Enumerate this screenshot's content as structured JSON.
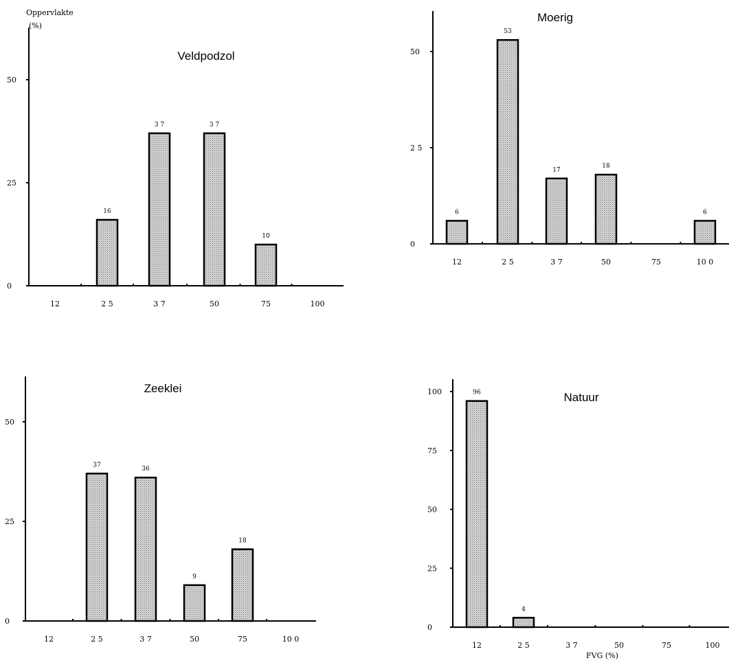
{
  "figure": {
    "y_unit_label": "Oppervlakte\n(%)",
    "x_unit_label": "FVG (%)"
  },
  "chart_data": [
    {
      "type": "bar",
      "title": "Veldpodzol",
      "categories": [
        "12",
        "25",
        "37",
        "50",
        "75",
        "100"
      ],
      "category_labels": [
        "12",
        "2 5",
        "3 7",
        "50",
        "75",
        "100"
      ],
      "values": [
        0,
        16,
        37,
        37,
        10,
        0
      ],
      "data_labels": [
        "",
        "16",
        "3 7",
        "3 7",
        "10",
        ""
      ],
      "yticks": [
        "0",
        "25",
        "50"
      ],
      "ylim": [
        0,
        60
      ],
      "grid": false
    },
    {
      "type": "bar",
      "title": "Moerig",
      "categories": [
        "12",
        "25",
        "37",
        "50",
        "75",
        "100"
      ],
      "category_labels": [
        "12",
        "2 5",
        "3 7",
        "50",
        "75",
        "10 0"
      ],
      "values": [
        6,
        53,
        17,
        18,
        0,
        6
      ],
      "data_labels": [
        "6",
        "53",
        "17",
        "18",
        "",
        "6"
      ],
      "yticks": [
        "0",
        "2 5",
        "50"
      ],
      "ylim": [
        0,
        60
      ],
      "grid": false
    },
    {
      "type": "bar",
      "title": "Zeeklei",
      "categories": [
        "12",
        "25",
        "37",
        "50",
        "75",
        "100"
      ],
      "category_labels": [
        "12",
        "2 5",
        "3 7",
        "50",
        "75",
        "10 0"
      ],
      "values": [
        0,
        37,
        36,
        9,
        18,
        0
      ],
      "data_labels": [
        "",
        "37",
        "36",
        "9",
        "18",
        ""
      ],
      "yticks": [
        "0",
        "25",
        "50"
      ],
      "ylim": [
        0,
        60
      ],
      "grid": false
    },
    {
      "type": "bar",
      "title": "Natuur",
      "categories": [
        "12",
        "25",
        "37",
        "50",
        "75",
        "100"
      ],
      "category_labels": [
        "12",
        "2 5",
        "3 7",
        "50",
        "75",
        "100"
      ],
      "values": [
        96,
        4,
        0,
        0,
        0,
        0
      ],
      "data_labels": [
        "96",
        "4",
        "",
        "",
        "",
        ""
      ],
      "yticks": [
        "0",
        "25",
        "50",
        "75",
        "100"
      ],
      "ylim": [
        0,
        100
      ],
      "grid": false
    }
  ]
}
